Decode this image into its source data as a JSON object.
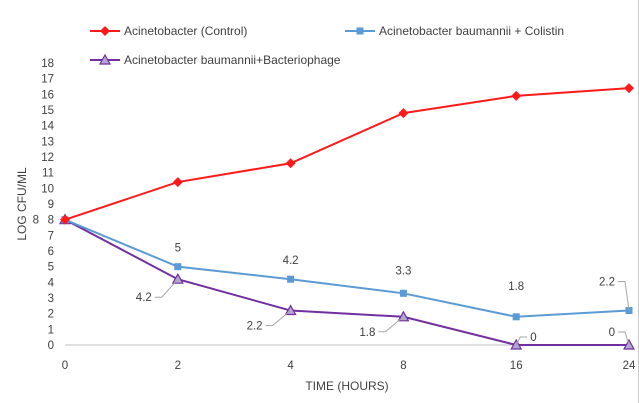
{
  "chart_data": {
    "type": "line",
    "title": "",
    "xlabel": "TIME (HOURS)",
    "ylabel": "LOG CFU/ML",
    "categories": [
      "0",
      "2",
      "4",
      "8",
      "16",
      "24"
    ],
    "ylim": [
      0,
      18
    ],
    "yticks": [
      0,
      1,
      2,
      3,
      4,
      5,
      6,
      7,
      8,
      9,
      10,
      11,
      12,
      13,
      14,
      15,
      16,
      17,
      18
    ],
    "grid": false,
    "legend_position": "top",
    "series": [
      {
        "name": "Acinetobacter (Control)",
        "color": "#ff1a1a",
        "marker": "diamond",
        "values": [
          8,
          10.4,
          11.6,
          14.8,
          15.9,
          16.4
        ],
        "labels": [
          "8",
          null,
          null,
          null,
          null,
          null
        ]
      },
      {
        "name": "Acinetobacter baumannii + Colistin",
        "color": "#5b9bd5",
        "marker": "square",
        "values": [
          8,
          5,
          4.2,
          3.3,
          1.8,
          2.2
        ],
        "labels": [
          null,
          "5",
          "4.2",
          "3.3",
          "1.8",
          "2.2"
        ]
      },
      {
        "name": "Acinetobacter baumannii+Bacteriophage",
        "color": "#7030a0",
        "marker": "triangle",
        "values": [
          8,
          4.2,
          2.2,
          1.8,
          0,
          0
        ],
        "labels": [
          null,
          "4.2",
          "2.2",
          "1.8",
          "0",
          "0"
        ]
      }
    ]
  }
}
